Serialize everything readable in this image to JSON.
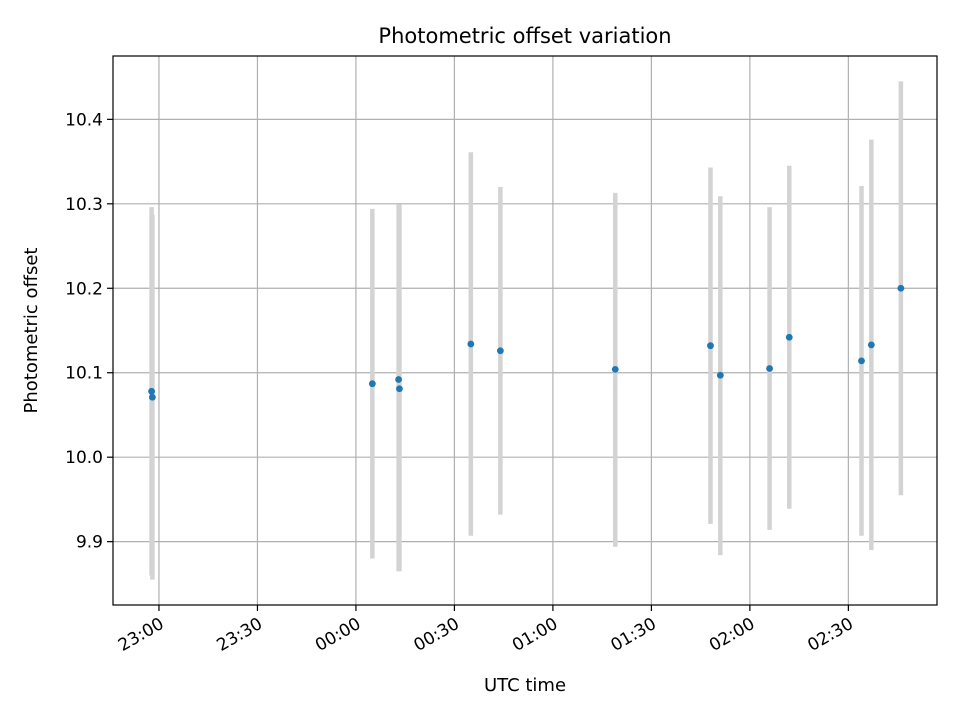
{
  "chart_data": {
    "type": "scatter",
    "title": "Photometric offset variation",
    "xlabel": "UTC time",
    "ylabel": "Photometric offset",
    "grid": true,
    "x_ticks": [
      {
        "value": "23:00",
        "label": "23:00"
      },
      {
        "value": "23:30",
        "label": "23:30"
      },
      {
        "value": "00:00",
        "label": "00:00"
      },
      {
        "value": "00:30",
        "label": "00:30"
      },
      {
        "value": "01:00",
        "label": "01:00"
      },
      {
        "value": "01:30",
        "label": "01:30"
      },
      {
        "value": "02:00",
        "label": "02:00"
      },
      {
        "value": "02:30",
        "label": "02:30"
      }
    ],
    "y_ticks": [
      9.9,
      10.0,
      10.1,
      10.2,
      10.3,
      10.4
    ],
    "xlim": [
      "22:46",
      "02:57"
    ],
    "ylim": [
      9.825,
      10.475
    ],
    "marker_color": "#1f77b4",
    "errorbar_color": "#d3d3d3",
    "points": [
      {
        "x": "22:57:45",
        "y": 10.078,
        "low": 9.86,
        "high": 10.296
      },
      {
        "x": "22:58:00",
        "y": 10.071,
        "low": 9.855,
        "high": 10.287
      },
      {
        "x": "00:05",
        "y": 10.087,
        "low": 9.88,
        "high": 10.294
      },
      {
        "x": "00:13",
        "y": 10.092,
        "low": 9.865,
        "high": 10.299
      },
      {
        "x": "00:13:15",
        "y": 10.081,
        "low": 9.865,
        "high": 10.299
      },
      {
        "x": "00:35",
        "y": 10.134,
        "low": 9.907,
        "high": 10.361
      },
      {
        "x": "00:44",
        "y": 10.126,
        "low": 9.932,
        "high": 10.32
      },
      {
        "x": "01:19",
        "y": 10.104,
        "low": 9.894,
        "high": 10.313
      },
      {
        "x": "01:48",
        "y": 10.132,
        "low": 9.921,
        "high": 10.343
      },
      {
        "x": "01:51",
        "y": 10.097,
        "low": 9.884,
        "high": 10.309
      },
      {
        "x": "02:06",
        "y": 10.105,
        "low": 9.914,
        "high": 10.296
      },
      {
        "x": "02:12",
        "y": 10.142,
        "low": 9.939,
        "high": 10.345
      },
      {
        "x": "02:34",
        "y": 10.114,
        "low": 9.907,
        "high": 10.321
      },
      {
        "x": "02:37",
        "y": 10.133,
        "low": 9.89,
        "high": 10.376
      },
      {
        "x": "02:46",
        "y": 10.2,
        "low": 9.955,
        "high": 10.445
      }
    ]
  }
}
